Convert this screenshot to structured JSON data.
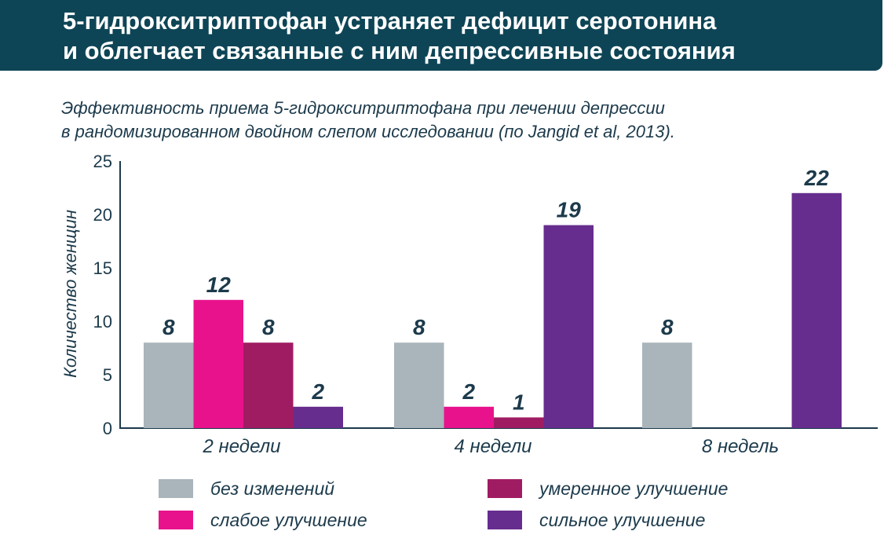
{
  "header": {
    "title_line1": "5-гидрокситриптофан устраняет дефицит серотонина",
    "title_line2": "и облегчает связанные с ним депрессивные состояния",
    "subtitle_line1": "Эффективность приема 5-гидрокситриптофана при лечении депрессии",
    "subtitle_line2": "в рандомизированном двойном слепом исследовании (по Jangid et al, 2013)."
  },
  "colors": {
    "banner": "#0e4556",
    "axis": "#1c3a4b",
    "no_change": "#a9b4bb",
    "mild": "#e8138c",
    "moderate": "#a01c62",
    "strong": "#662d8e"
  },
  "chart_data": {
    "type": "bar",
    "ylabel": "Количество женщин",
    "xlabel": "",
    "ylim": [
      0,
      25
    ],
    "yticks": [
      "0",
      "5",
      "10",
      "15",
      "20",
      "25"
    ],
    "categories": [
      "2 недели",
      "4 недели",
      "8 недель"
    ],
    "series": [
      {
        "name": "без изменений",
        "key": "no_change",
        "values": [
          8,
          8,
          8
        ],
        "labels": [
          "8",
          "8",
          "8"
        ]
      },
      {
        "name": "слабое улучшение",
        "key": "mild",
        "values": [
          12,
          2,
          0
        ],
        "labels": [
          "12",
          "2",
          ""
        ]
      },
      {
        "name": "умеренное улучшение",
        "key": "moderate",
        "values": [
          8,
          1,
          0
        ],
        "labels": [
          "8",
          "1",
          ""
        ]
      },
      {
        "name": "сильное улучшение",
        "key": "strong",
        "values": [
          2,
          19,
          22
        ],
        "labels": [
          "2",
          "19",
          "22"
        ]
      }
    ]
  },
  "legend": {
    "no_change": "без изменений",
    "mild": "слабое улучшение",
    "moderate": "умеренное улучшение",
    "strong": "сильное улучшение"
  }
}
